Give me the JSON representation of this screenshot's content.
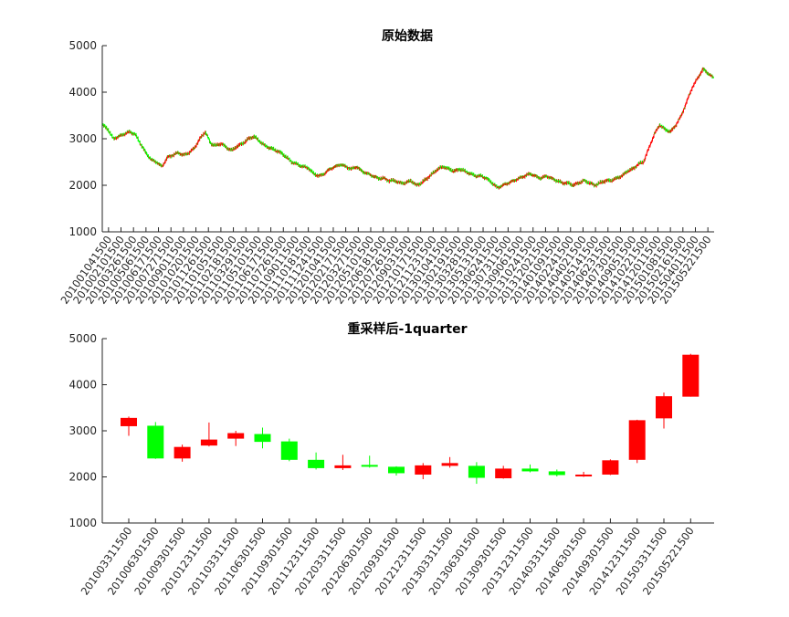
{
  "figure": {
    "colors": {
      "up": "#ff0000",
      "down": "#00ff00",
      "axis": "#262626"
    }
  },
  "chart_data": [
    {
      "type": "candlestick",
      "title": "原始数据",
      "ylim": [
        1000,
        5000
      ],
      "yticks": [
        1000,
        2000,
        3000,
        4000,
        5000
      ],
      "xtick_labels": [
        "201001041500",
        "201002101500",
        "201003261500",
        "201005061500",
        "201006171500",
        "201007271500",
        "201009011500",
        "201010201500",
        "201011261500",
        "201101051500",
        "201102181500",
        "201103291500",
        "201105101500",
        "201106171500",
        "201107261500",
        "201109011500",
        "201110181500",
        "201111241500",
        "201201041500",
        "201202171500",
        "201203271500",
        "201205101500",
        "201206181500",
        "201207261500",
        "201209031500",
        "201210171500",
        "201211231500",
        "201301041500",
        "201302191500",
        "201303281500",
        "201305131500",
        "201306241500",
        "201307311500",
        "201309061500",
        "201310241500",
        "201312021500",
        "201401091500",
        "201402241500",
        "201404021500",
        "201405141500",
        "201406231500",
        "201407301500",
        "201409051500",
        "201410221500",
        "201412011500",
        "201501081500",
        "201502161500",
        "201504011500",
        "201505221500"
      ],
      "close_series_approx": [
        3300,
        3200,
        3000,
        3050,
        3100,
        3150,
        3100,
        2900,
        2700,
        2550,
        2500,
        2400,
        2600,
        2650,
        2700,
        2650,
        2700,
        2800,
        3000,
        3150,
        2900,
        2850,
        2900,
        2800,
        2750,
        2850,
        2900,
        3000,
        3050,
        2950,
        2850,
        2800,
        2750,
        2700,
        2600,
        2500,
        2450,
        2400,
        2380,
        2250,
        2200,
        2250,
        2350,
        2400,
        2450,
        2400,
        2350,
        2400,
        2300,
        2250,
        2200,
        2150,
        2150,
        2100,
        2100,
        2050,
        2050,
        2100,
        2000,
        2050,
        2150,
        2250,
        2350,
        2400,
        2350,
        2300,
        2350,
        2300,
        2250,
        2200,
        2200,
        2150,
        2050,
        1950,
        2000,
        2050,
        2100,
        2150,
        2200,
        2250,
        2200,
        2150,
        2200,
        2150,
        2100,
        2050,
        2050,
        2000,
        2050,
        2100,
        2050,
        2000,
        2050,
        2100,
        2100,
        2150,
        2200,
        2300,
        2350,
        2450,
        2500,
        2800,
        3100,
        3300,
        3200,
        3150,
        3300,
        3500,
        3800,
        4100,
        4300,
        4500,
        4400,
        4300
      ]
    },
    {
      "type": "candlestick",
      "title": "重采样后-1quarter",
      "ylim": [
        1000,
        5000
      ],
      "yticks": [
        1000,
        2000,
        3000,
        4000,
        5000
      ],
      "categories": [
        "201003311500",
        "201006301500",
        "201009301500",
        "201012311500",
        "201103311500",
        "201106301500",
        "201109301500",
        "201112311500",
        "201203311500",
        "201206301500",
        "201209301500",
        "201212311500",
        "201303311500",
        "201306301500",
        "201309301500",
        "201312311500",
        "201403311500",
        "201406301500",
        "201409301500",
        "201412311500",
        "201503311500",
        "201505221500"
      ],
      "ohlc": [
        {
          "o": 3100,
          "h": 3310,
          "l": 2890,
          "c": 3280
        },
        {
          "o": 3110,
          "h": 3190,
          "l": 2390,
          "c": 2400
        },
        {
          "o": 2400,
          "h": 2700,
          "l": 2330,
          "c": 2650
        },
        {
          "o": 2680,
          "h": 3180,
          "l": 2660,
          "c": 2810
        },
        {
          "o": 2830,
          "h": 3000,
          "l": 2670,
          "c": 2950
        },
        {
          "o": 2930,
          "h": 3070,
          "l": 2620,
          "c": 2760
        },
        {
          "o": 2770,
          "h": 2830,
          "l": 2340,
          "c": 2370
        },
        {
          "o": 2370,
          "h": 2530,
          "l": 2160,
          "c": 2190
        },
        {
          "o": 2190,
          "h": 2480,
          "l": 2150,
          "c": 2250
        },
        {
          "o": 2260,
          "h": 2460,
          "l": 2200,
          "c": 2220
        },
        {
          "o": 2220,
          "h": 2230,
          "l": 2030,
          "c": 2080
        },
        {
          "o": 2050,
          "h": 2300,
          "l": 1950,
          "c": 2250
        },
        {
          "o": 2240,
          "h": 2430,
          "l": 2200,
          "c": 2300
        },
        {
          "o": 2240,
          "h": 2320,
          "l": 1850,
          "c": 1980
        },
        {
          "o": 1970,
          "h": 2240,
          "l": 1960,
          "c": 2180
        },
        {
          "o": 2180,
          "h": 2270,
          "l": 2100,
          "c": 2120
        },
        {
          "o": 2120,
          "h": 2160,
          "l": 2010,
          "c": 2040
        },
        {
          "o": 2030,
          "h": 2110,
          "l": 2000,
          "c": 2050
        },
        {
          "o": 2050,
          "h": 2380,
          "l": 2040,
          "c": 2360
        },
        {
          "o": 2370,
          "h": 3240,
          "l": 2300,
          "c": 3230
        },
        {
          "o": 3270,
          "h": 3830,
          "l": 3050,
          "c": 3750
        },
        {
          "o": 3740,
          "h": 4670,
          "l": 3740,
          "c": 4650
        }
      ]
    }
  ]
}
